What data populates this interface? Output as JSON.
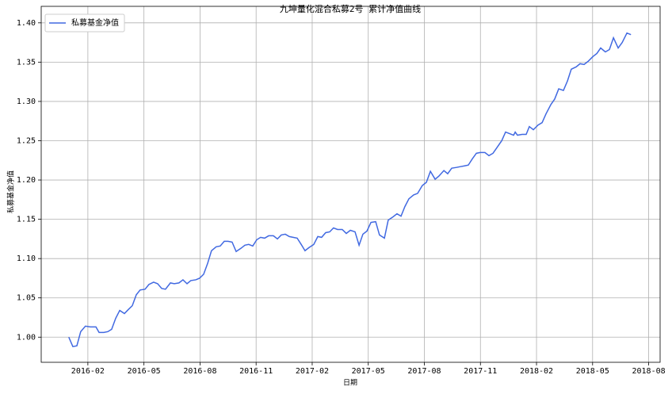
{
  "chart_data": {
    "type": "line",
    "title": "九坤量化混合私募2号 累计净值曲线",
    "x_label": "日期",
    "y_label": "私募基金净值",
    "legend": "upper left",
    "grid": true,
    "x": [
      2015.998,
      2016.016,
      2016.034,
      2016.051,
      2016.072,
      2016.094,
      2016.119,
      2016.133,
      2016.154,
      2016.172,
      2016.189,
      2016.207,
      2016.225,
      2016.246,
      2016.263,
      2016.281,
      2016.299,
      2016.316,
      2016.338,
      2016.355,
      2016.376,
      2016.394,
      2016.412,
      2016.429,
      2016.451,
      2016.468,
      2016.489,
      2016.507,
      2016.525,
      2016.542,
      2016.564,
      2016.581,
      2016.599,
      2016.617,
      2016.634,
      2016.655,
      2016.673,
      2016.691,
      2016.708,
      2016.726,
      2016.744,
      2016.765,
      2016.783,
      2016.8,
      2016.818,
      2016.836,
      2016.853,
      2016.871,
      2016.889,
      2016.91,
      2016.928,
      2016.945,
      2016.963,
      2016.981,
      2016.998,
      2017.016,
      2017.034,
      2017.051,
      2017.069,
      2017.09,
      2017.108,
      2017.125,
      2017.143,
      2017.161,
      2017.178,
      2017.196,
      2017.217,
      2017.235,
      2017.253,
      2017.274,
      2017.292,
      2017.309,
      2017.327,
      2017.345,
      2017.366,
      2017.383,
      2017.405,
      2017.422,
      2017.443,
      2017.461,
      2017.479,
      2017.496,
      2017.514,
      2017.535,
      2017.553,
      2017.574,
      2017.592,
      2017.61,
      2017.631,
      2017.648,
      2017.67,
      2017.687,
      2017.705,
      2017.726,
      2017.744,
      2017.762,
      2017.779,
      2017.797,
      2017.815,
      2017.832,
      2017.853,
      2017.871,
      2017.889,
      2017.906,
      2017.928,
      2017.945,
      2017.963,
      2017.981,
      2017.988,
      2017.998,
      2018.019,
      2018.037,
      2018.051,
      2018.069,
      2018.09,
      2018.108,
      2018.125,
      2018.147,
      2018.164,
      2018.182,
      2018.203,
      2018.221,
      2018.238,
      2018.26,
      2018.277,
      2018.295,
      2018.313,
      2018.334,
      2018.352,
      2018.369,
      2018.39,
      2018.408,
      2018.426,
      2018.447,
      2018.465,
      2018.486,
      2018.504
    ],
    "series": [
      {
        "name": "私募基金净值",
        "color": "#4169e1",
        "values": [
          1.0,
          0.988,
          0.989,
          1.007,
          1.014,
          1.013,
          1.013,
          1.006,
          1.006,
          1.007,
          1.01,
          1.024,
          1.034,
          1.03,
          1.035,
          1.04,
          1.054,
          1.06,
          1.061,
          1.067,
          1.07,
          1.068,
          1.062,
          1.061,
          1.069,
          1.068,
          1.069,
          1.073,
          1.068,
          1.072,
          1.073,
          1.075,
          1.08,
          1.094,
          1.11,
          1.115,
          1.116,
          1.122,
          1.122,
          1.121,
          1.109,
          1.113,
          1.117,
          1.118,
          1.116,
          1.124,
          1.127,
          1.126,
          1.129,
          1.129,
          1.125,
          1.13,
          1.131,
          1.128,
          1.127,
          1.126,
          1.118,
          1.11,
          1.114,
          1.118,
          1.128,
          1.127,
          1.133,
          1.134,
          1.139,
          1.137,
          1.137,
          1.132,
          1.136,
          1.134,
          1.117,
          1.131,
          1.135,
          1.146,
          1.147,
          1.13,
          1.126,
          1.149,
          1.153,
          1.157,
          1.154,
          1.166,
          1.176,
          1.181,
          1.183,
          1.193,
          1.197,
          1.211,
          1.201,
          1.205,
          1.212,
          1.208,
          1.215,
          1.216,
          1.217,
          1.218,
          1.219,
          1.227,
          1.234,
          1.235,
          1.235,
          1.231,
          1.234,
          1.241,
          1.25,
          1.261,
          1.259,
          1.257,
          1.261,
          1.257,
          1.258,
          1.258,
          1.268,
          1.264,
          1.27,
          1.273,
          1.284,
          1.296,
          1.303,
          1.316,
          1.314,
          1.326,
          1.341,
          1.344,
          1.348,
          1.347,
          1.351,
          1.357,
          1.361,
          1.368,
          1.363,
          1.366,
          1.381,
          1.368,
          1.375,
          1.387,
          1.385
        ]
      }
    ],
    "xlim": [
      2015.875,
      2018.634
    ],
    "xticks": [
      {
        "value": 2016.083,
        "label": "2016-02"
      },
      {
        "value": 2016.333,
        "label": "2016-05"
      },
      {
        "value": 2016.583,
        "label": "2016-08"
      },
      {
        "value": 2016.833,
        "label": "2016-11"
      },
      {
        "value": 2017.083,
        "label": "2017-02"
      },
      {
        "value": 2017.333,
        "label": "2017-05"
      },
      {
        "value": 2017.583,
        "label": "2017-08"
      },
      {
        "value": 2017.833,
        "label": "2017-11"
      },
      {
        "value": 2018.083,
        "label": "2018-02"
      },
      {
        "value": 2018.333,
        "label": "2018-05"
      },
      {
        "value": 2018.583,
        "label": "2018-08"
      }
    ],
    "ylim": [
      0.968,
      1.421
    ],
    "yticks": [
      {
        "value": 1,
        "label": "1.00"
      },
      1.05,
      {
        "value": 1.1,
        "label": "1.10"
      },
      1.15,
      {
        "value": 1.2,
        "label": "1.20"
      },
      1.25,
      {
        "value": 1.3,
        "label": "1.30"
      },
      1.35,
      {
        "value": 1.4,
        "label": "1.40"
      }
    ]
  }
}
